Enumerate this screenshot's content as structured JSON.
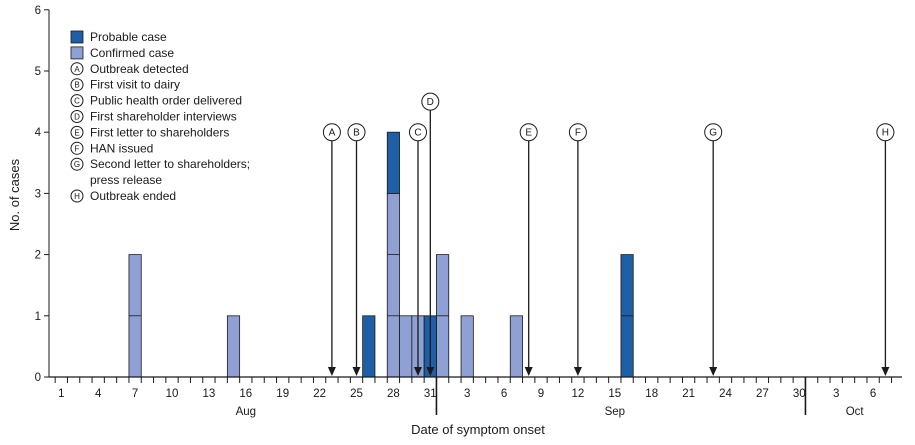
{
  "chart_data": {
    "type": "bar",
    "stacked": true,
    "xlabel": "Date of symptom onset",
    "ylabel": "No. of cases",
    "ylim": [
      0,
      6
    ],
    "yticks": [
      0,
      1,
      2,
      3,
      4,
      5,
      6
    ],
    "x_day_range": [
      1,
      69
    ],
    "x_ticks": [
      {
        "day": 1,
        "label": "1"
      },
      {
        "day": 4,
        "label": "4"
      },
      {
        "day": 7,
        "label": "7"
      },
      {
        "day": 10,
        "label": "10"
      },
      {
        "day": 13,
        "label": "13"
      },
      {
        "day": 16,
        "label": "16"
      },
      {
        "day": 19,
        "label": "19"
      },
      {
        "day": 22,
        "label": "22"
      },
      {
        "day": 25,
        "label": "25"
      },
      {
        "day": 28,
        "label": "28"
      },
      {
        "day": 31,
        "label": "31"
      },
      {
        "day": 34,
        "label": "3"
      },
      {
        "day": 37,
        "label": "6"
      },
      {
        "day": 40,
        "label": "9"
      },
      {
        "day": 43,
        "label": "12"
      },
      {
        "day": 46,
        "label": "15"
      },
      {
        "day": 49,
        "label": "18"
      },
      {
        "day": 52,
        "label": "21"
      },
      {
        "day": 55,
        "label": "24"
      },
      {
        "day": 58,
        "label": "27"
      },
      {
        "day": 61,
        "label": "30"
      },
      {
        "day": 64,
        "label": "3"
      },
      {
        "day": 67,
        "label": "6"
      }
    ],
    "months": [
      {
        "label": "Aug",
        "center_day": 16
      },
      {
        "label": "Sep",
        "center_day": 46
      },
      {
        "label": "Oct",
        "center_day": 65.5
      }
    ],
    "month_boundaries": [
      31.5,
      61.5
    ],
    "series": [
      {
        "name": "Probable case",
        "color": "#1f5fa6",
        "points": [
          {
            "day": 26,
            "value": 1
          },
          {
            "day": 28,
            "value": 1
          },
          {
            "day": 31,
            "value": 1
          },
          {
            "day": 47,
            "value": 2
          }
        ]
      },
      {
        "name": "Confirmed case",
        "color": "#8fa0d4",
        "points": [
          {
            "day": 7,
            "value": 2
          },
          {
            "day": 15,
            "value": 1
          },
          {
            "day": 28,
            "value": 3
          },
          {
            "day": 29,
            "value": 1
          },
          {
            "day": 30,
            "value": 1
          },
          {
            "day": 32,
            "value": 2
          },
          {
            "day": 34,
            "value": 1
          },
          {
            "day": 38,
            "value": 1
          }
        ]
      }
    ],
    "events": [
      {
        "letter": "A",
        "day": 23,
        "label": "Outbreak detected",
        "level": 4
      },
      {
        "letter": "B",
        "day": 25,
        "label": "First visit to dairy",
        "level": 4
      },
      {
        "letter": "C",
        "day": 30,
        "label": "Public health order delivered",
        "level": 4
      },
      {
        "letter": "D",
        "day": 31,
        "label": "First shareholder interviews",
        "level": 4.5
      },
      {
        "letter": "E",
        "day": 39,
        "label": "First letter to shareholders",
        "level": 4
      },
      {
        "letter": "F",
        "day": 43,
        "label": "HAN issued",
        "level": 4
      },
      {
        "letter": "G",
        "day": 54,
        "label": "Second letter to shareholders;",
        "label_line2": "press release",
        "level": 4
      },
      {
        "letter": "H",
        "day": 68,
        "label": "Outbreak ended",
        "level": 4
      }
    ]
  }
}
